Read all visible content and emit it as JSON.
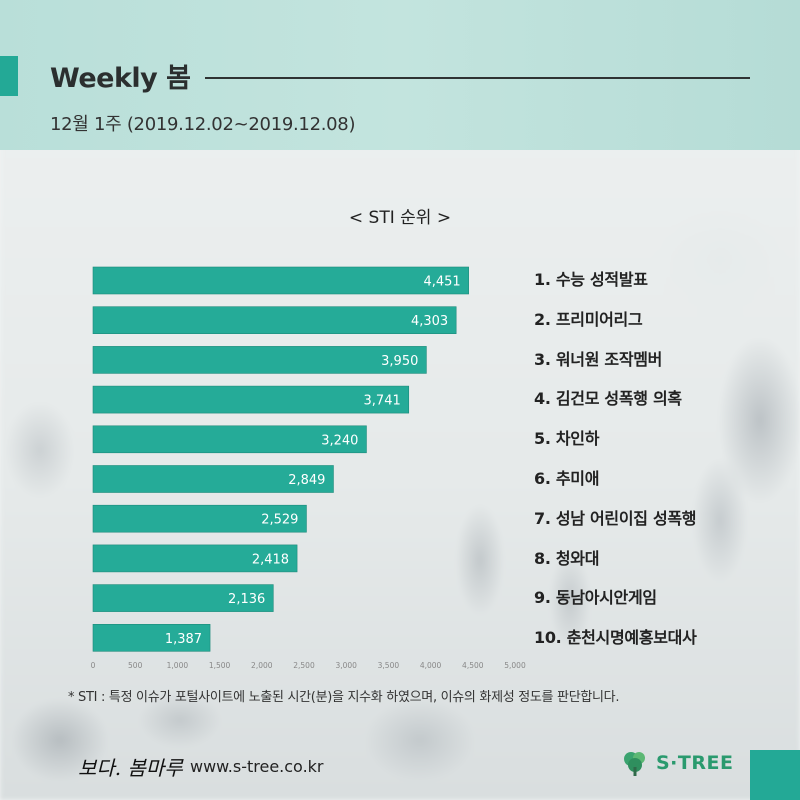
{
  "header": {
    "title": "Weekly 봄",
    "subtitle": "12월 1주 (2019.12.02~2019.12.08)"
  },
  "chart_data": {
    "type": "bar",
    "orientation": "horizontal",
    "title": "< STI 순위 >",
    "categories": [
      "수능 성적발표",
      "프리미어리그",
      "워너원 조작멤버",
      "김건모 성폭행 의혹",
      "차인하",
      "추미애",
      "성남 어린이집 성폭행",
      "청와대",
      "동남아시안게임",
      "춘천시명예홍보대사"
    ],
    "values": [
      4451,
      4303,
      3950,
      3741,
      3240,
      2849,
      2529,
      2418,
      2136,
      1387
    ],
    "value_labels": [
      "4,451",
      "4,303",
      "3,950",
      "3,741",
      "3,240",
      "2,849",
      "2,529",
      "2,418",
      "2,136",
      "1,387"
    ],
    "xlim": [
      0,
      5000
    ],
    "xticks": [
      "0",
      "500",
      "1,000",
      "1,500",
      "2,000",
      "2,500",
      "3,000",
      "3,500",
      "4,000",
      "4,500",
      "5,000"
    ],
    "bar_color": "#25ab98",
    "grid": false
  },
  "ranking": [
    "1. 수능 성적발표",
    "2. 프리미어리그",
    "3. 워너원 조작멤버",
    "4. 김건모 성폭행 의혹",
    "5. 차인하",
    "6. 추미애",
    "7. 성남 어린이집 성폭행",
    "8. 청와대",
    "9. 동남아시안게임",
    "10. 춘천시명예홍보대사"
  ],
  "footnote": "* STI : 특정 이슈가 포털사이트에 노출된 시간(분)을 지수화 하였으며, 이슈의 화제성 정도를 판단합니다.",
  "footer": {
    "brand": "보다. 봄마루",
    "url": "www.s-tree.co.kr",
    "logo_text": "S·TREE",
    "logo_icon": "tree-icon"
  },
  "colors": {
    "accent": "#23a996",
    "header_band": "#bfe2dc",
    "logo": "#2a9a6e"
  }
}
